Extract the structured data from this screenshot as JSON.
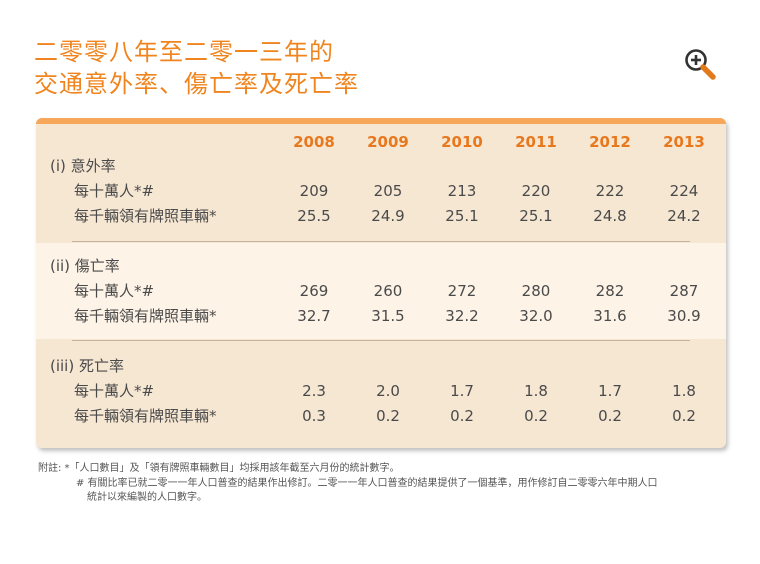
{
  "title": {
    "line1": "二零零八年至二零一三年的",
    "line2": "交通意外率、傷亡率及死亡率"
  },
  "zoom_icon": "zoom-in-icon",
  "colors": {
    "accent": "#f0841e",
    "panel": "#f6e7d3",
    "panel_light": "#fdf3e7",
    "header_band": "#f7a75a"
  },
  "table": {
    "years": [
      "2008",
      "2009",
      "2010",
      "2011",
      "2012",
      "2013"
    ],
    "sections": [
      {
        "label": "(i)  意外率",
        "rows": [
          {
            "label": "每十萬人*#",
            "values": [
              "209",
              "205",
              "213",
              "220",
              "222",
              "224"
            ]
          },
          {
            "label": "每千輛領有牌照車輛*",
            "values": [
              "25.5",
              "24.9",
              "25.1",
              "25.1",
              "24.8",
              "24.2"
            ]
          }
        ]
      },
      {
        "label": "(ii)  傷亡率",
        "rows": [
          {
            "label": "每十萬人*#",
            "values": [
              "269",
              "260",
              "272",
              "280",
              "282",
              "287"
            ]
          },
          {
            "label": "每千輛領有牌照車輛*",
            "values": [
              "32.7",
              "31.5",
              "32.2",
              "32.0",
              "31.6",
              "30.9"
            ]
          }
        ]
      },
      {
        "label": "(iii)  死亡率",
        "rows": [
          {
            "label": "每十萬人*#",
            "values": [
              "2.3",
              "2.0",
              "1.7",
              "1.8",
              "1.7",
              "1.8"
            ]
          },
          {
            "label": "每千輛領有牌照車輛*",
            "values": [
              "0.3",
              "0.2",
              "0.2",
              "0.2",
              "0.2",
              "0.2"
            ]
          }
        ]
      }
    ]
  },
  "footnotes": {
    "line1": "附註: *「人口數目」及「領有牌照車輛數目」均採用該年截至六月份的統計數字。",
    "line2": "# 有關比率已就二零一一年人口普查的結果作出修訂。二零一一年人口普查的結果提供了一個基準，用作修訂自二零零六年中期人口",
    "line3": "統計以來編製的人口數字。"
  }
}
